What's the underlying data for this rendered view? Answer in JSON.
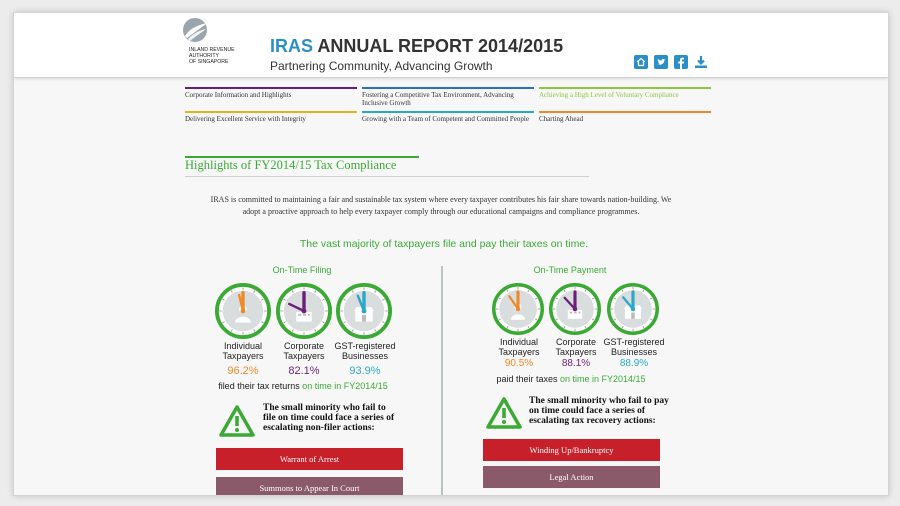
{
  "header": {
    "org_name": "INLAND REVENUE\nAUTHORITY\nOF SINGAPORE",
    "title_brand": "IRAS",
    "title_rest": " ANNUAL REPORT 2014/2015",
    "subtitle": "Partnering Community, Advancing Growth",
    "icons": [
      "home-icon",
      "twitter-icon",
      "facebook-icon",
      "download-icon"
    ],
    "accent": "#2a8fc7"
  },
  "nav": {
    "items": [
      {
        "label": "Corporate Information and Highlights",
        "color": "#6b1e7a"
      },
      {
        "label": "Fostering a Competitive Tax Environment, Advancing Inclusive Growth",
        "color": "#2a6fbf"
      },
      {
        "label": "Achieving a High Level of Voluntary Compliance",
        "color": "#8dc63f"
      },
      {
        "label": "Delivering Excellent Service with Integrity",
        "color": "#e0b420"
      },
      {
        "label": "Growing with a Team of Competent and Committed People",
        "color": "#2aa8c7"
      },
      {
        "label": "Charting Ahead",
        "color": "#ef8a2c"
      }
    ]
  },
  "section": {
    "title": "Highlights of FY2014/15 Tax Compliance",
    "intro": "IRAS is committed to maintaining a fair and sustainable tax system where every taxpayer contributes his fair share towards nation-building. We adopt a proactive approach to help every taxpayer comply through our educational campaigns and compliance programmes.",
    "headline": "The vast majority of taxpayers file and pay their taxes on time."
  },
  "filing": {
    "title": "On-Time Filing",
    "groups": [
      {
        "label": "Individual Taxpayers",
        "pct": "96.2%",
        "value": 96.2,
        "color": "#ef8a2c"
      },
      {
        "label": "Corporate Taxpayers",
        "pct": "82.1%",
        "value": 82.1,
        "color": "#6b1e7a"
      },
      {
        "label": "GST-registered Businesses",
        "pct": "93.9%",
        "value": 93.9,
        "color": "#2aa8c7"
      }
    ],
    "caption_pre": "filed their tax returns ",
    "caption_em": "on time in FY2014/15",
    "warning": "The small minority who fail to file on time could face a series of escalating non-filer actions:",
    "actions": [
      {
        "label": "Warrant of Arrest",
        "color": "#c8202a"
      },
      {
        "label": "Summons to Appear In Court",
        "color": "#8a5a6a"
      }
    ]
  },
  "payment": {
    "title": "On-Time Payment",
    "groups": [
      {
        "label": "Individual Taxpayers",
        "pct": "90.5%",
        "value": 90.5,
        "color": "#ef8a2c"
      },
      {
        "label": "Corporate Taxpayers",
        "pct": "88.1%",
        "value": 88.1,
        "color": "#6b1e7a"
      },
      {
        "label": "GST-registered Businesses",
        "pct": "88.9%",
        "value": 88.9,
        "color": "#2aa8c7"
      }
    ],
    "caption_pre": "paid their taxes ",
    "caption_em": "on time in FY2014/15",
    "warning": "The small minority who fail to pay on time could face a series of escalating tax recovery actions:",
    "actions": [
      {
        "label": "Winding Up/Bankruptcy",
        "color": "#c8202a"
      },
      {
        "label": "Legal Action",
        "color": "#8a5a6a"
      }
    ]
  },
  "theme": {
    "green": "#3aaa35",
    "gauge_ring": "#3aaa35",
    "gauge_face": "#d9dddd"
  }
}
